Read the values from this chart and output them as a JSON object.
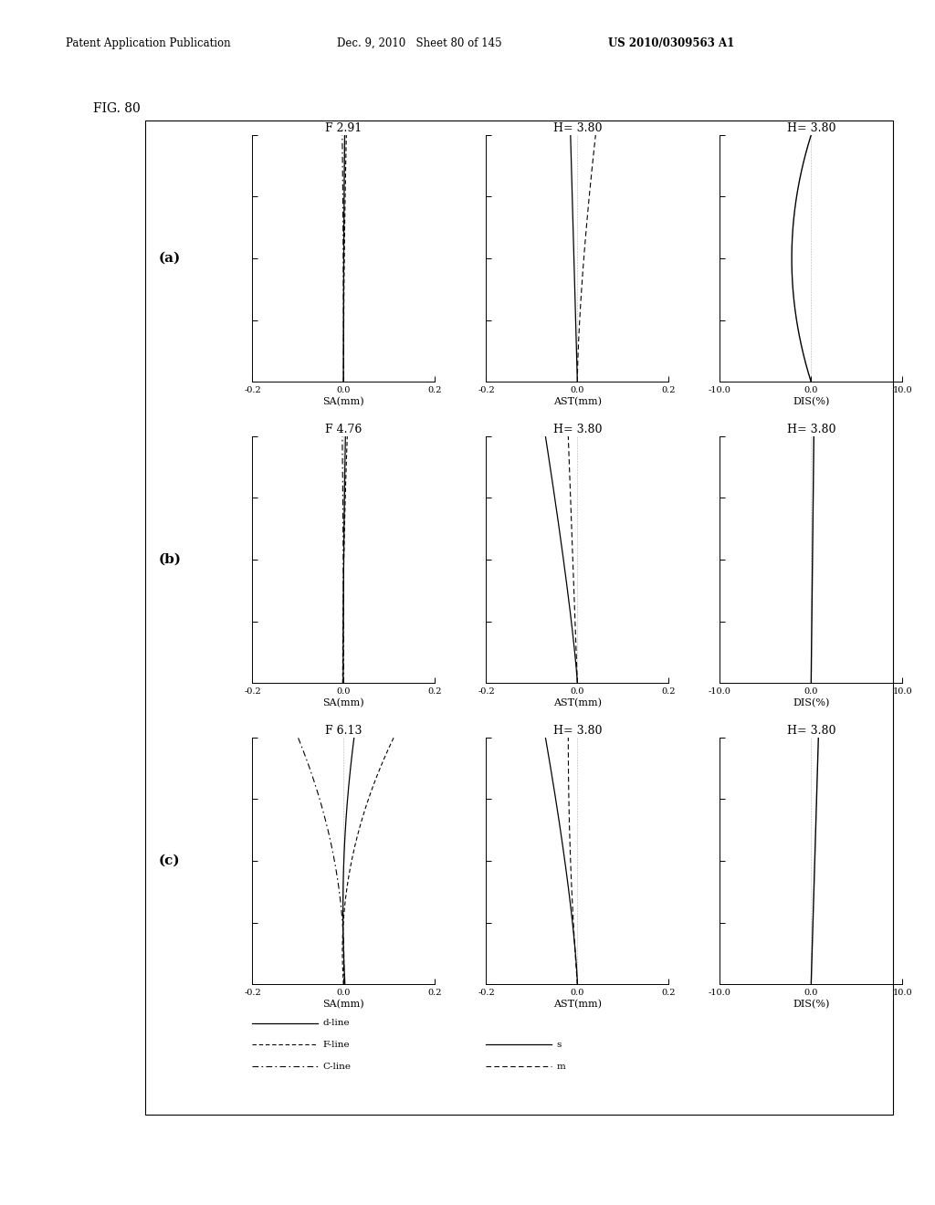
{
  "header_left": "Patent Application Publication",
  "header_mid": "Dec. 9, 2010   Sheet 80 of 145",
  "header_right": "US 2010/0309563 A1",
  "fig_label": "FIG. 80",
  "rows": [
    {
      "row_label": "(a)",
      "sa_title": "F 2.91",
      "ast_title": "H= 3.80",
      "dis_title": "H= 3.80"
    },
    {
      "row_label": "(b)",
      "sa_title": "F 4.76",
      "ast_title": "H= 3.80",
      "dis_title": "H= 3.80"
    },
    {
      "row_label": "(c)",
      "sa_title": "F 6.13",
      "ast_title": "H= 3.80",
      "dis_title": "H= 3.80"
    }
  ],
  "sa_xlim": [
    -0.2,
    0.2
  ],
  "ast_xlim": [
    -0.2,
    0.2
  ],
  "dis_xlim": [
    -10.0,
    10.0
  ],
  "ylim": [
    0.0,
    1.0
  ],
  "sa_xticks": [
    -0.2,
    0.0,
    0.2
  ],
  "ast_xticks": [
    -0.2,
    0.0,
    0.2
  ],
  "dis_xticks": [
    -10.0,
    0.0,
    10.0
  ],
  "ytick_count": 5,
  "bg_color": "#ffffff"
}
